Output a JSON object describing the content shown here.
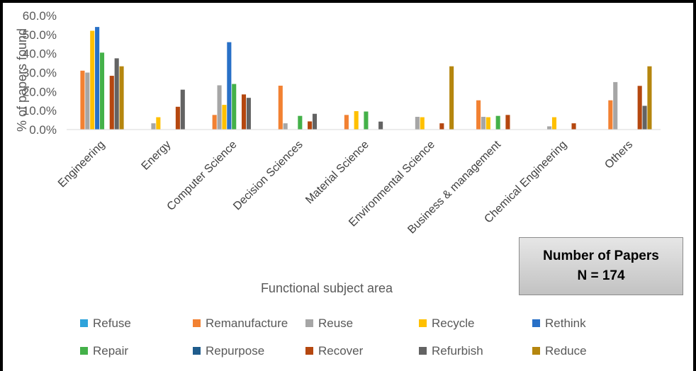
{
  "chart_data": {
    "type": "bar",
    "title": "",
    "xlabel": "Functional subject area",
    "ylabel": "% of papers found",
    "ylim": [
      0,
      60
    ],
    "yticks": [
      "0.0%",
      "10.0%",
      "20.0%",
      "30.0%",
      "40.0%",
      "50.0%",
      "60.0%"
    ],
    "grid": false,
    "legend_position": "bottom",
    "categories": [
      "Engineering",
      "Energy",
      "Computer Science",
      "Decision Sciences",
      "Material Science",
      "Environmental Science",
      "Business & management",
      "Chemical Engineering",
      "Others"
    ],
    "series": [
      {
        "name": "Refuse",
        "color": "#2ea3db",
        "values": [
          0,
          0,
          0,
          0,
          0,
          0,
          0,
          0,
          0
        ]
      },
      {
        "name": "Remanufacture",
        "color": "#f28132",
        "values": [
          31,
          0,
          7.7,
          23.1,
          7.7,
          0,
          15.4,
          0,
          15.4
        ]
      },
      {
        "name": "Reuse",
        "color": "#a6a6a6",
        "values": [
          30,
          3.3,
          23.3,
          3.3,
          0,
          6.7,
          6.7,
          1.7,
          25
        ]
      },
      {
        "name": "Recycle",
        "color": "#ffc000",
        "values": [
          52,
          6.5,
          13,
          0,
          9.7,
          6.5,
          6.5,
          6.5,
          0
        ]
      },
      {
        "name": "Rethink",
        "color": "#2870c7",
        "values": [
          54,
          0,
          46,
          0,
          0,
          0,
          0,
          0,
          0
        ]
      },
      {
        "name": "Repair",
        "color": "#44b149",
        "values": [
          40.5,
          0,
          24,
          7.2,
          9.5,
          0,
          7.2,
          0,
          0
        ]
      },
      {
        "name": "Repurpose",
        "color": "#1f5c8c",
        "values": [
          0,
          0,
          0,
          0,
          0,
          0,
          0,
          0,
          0
        ]
      },
      {
        "name": "Recover",
        "color": "#b5470f",
        "values": [
          28.3,
          12,
          18.5,
          4.3,
          0,
          3.3,
          7.7,
          3.3,
          23
        ]
      },
      {
        "name": "Refurbish",
        "color": "#636363",
        "values": [
          37.5,
          21,
          16.7,
          8.3,
          4.2,
          0,
          0,
          0,
          12.5
        ]
      },
      {
        "name": "Reduce",
        "color": "#b5860e",
        "values": [
          33.3,
          0,
          0,
          0,
          0,
          33.3,
          0,
          0,
          33.3
        ]
      }
    ]
  },
  "info_box": {
    "line1": "Number of Papers",
    "line2": "N = 174"
  }
}
